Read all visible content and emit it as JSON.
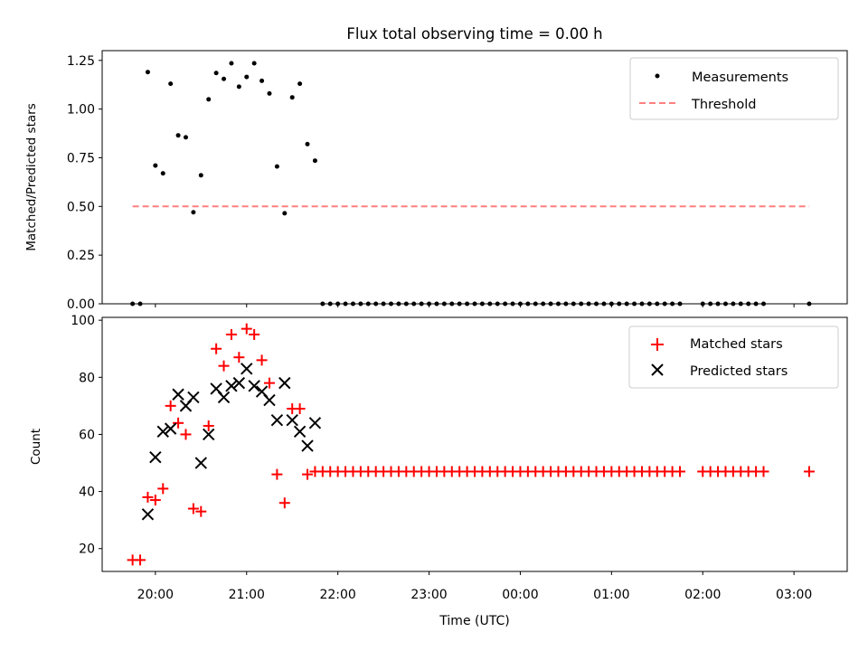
{
  "figure": {
    "title": "Flux total observing time = 0.00 h",
    "xlabel": "Time (UTC)"
  },
  "colors": {
    "measurements": "#000000",
    "threshold": "#ff7f7f",
    "matched": "#ff0000",
    "predicted": "#000000"
  },
  "chart_data": [
    {
      "type": "scatter",
      "panel": "top",
      "ylabel": "Matched/Predicted stars",
      "ylim": [
        0,
        1.3
      ],
      "yticks": [
        "0.00",
        "0.25",
        "0.50",
        "0.75",
        "1.00",
        "1.25"
      ],
      "xlim": [
        "19:25",
        "03:35"
      ],
      "legend": {
        "placement": "top-right",
        "entries": [
          "Measurements",
          "Threshold"
        ]
      },
      "series": [
        {
          "name": "Measurements",
          "marker": "dot",
          "points": [
            [
              "19:45",
              0.0
            ],
            [
              "19:50",
              0.0
            ],
            [
              "19:55",
              1.19
            ],
            [
              "20:00",
              0.71
            ],
            [
              "20:05",
              0.67
            ],
            [
              "20:10",
              1.13
            ],
            [
              "20:15",
              0.865
            ],
            [
              "20:20",
              0.855
            ],
            [
              "20:25",
              0.47
            ],
            [
              "20:30",
              0.66
            ],
            [
              "20:35",
              1.05
            ],
            [
              "20:40",
              1.185
            ],
            [
              "20:45",
              1.155
            ],
            [
              "20:50",
              1.235
            ],
            [
              "20:55",
              1.115
            ],
            [
              "21:00",
              1.165
            ],
            [
              "21:05",
              1.235
            ],
            [
              "21:10",
              1.145
            ],
            [
              "21:15",
              1.08
            ],
            [
              "21:20",
              0.705
            ],
            [
              "21:25",
              0.465
            ],
            [
              "21:30",
              1.06
            ],
            [
              "21:35",
              1.13
            ],
            [
              "21:40",
              0.82
            ],
            [
              "21:45",
              0.735
            ],
            [
              "21:50",
              0.0
            ],
            [
              "21:55",
              0.0
            ],
            [
              "22:00",
              0.0
            ],
            [
              "22:05",
              0.0
            ],
            [
              "22:10",
              0.0
            ],
            [
              "22:15",
              0.0
            ],
            [
              "22:20",
              0.0
            ],
            [
              "22:25",
              0.0
            ],
            [
              "22:30",
              0.0
            ],
            [
              "22:35",
              0.0
            ],
            [
              "22:40",
              0.0
            ],
            [
              "22:45",
              0.0
            ],
            [
              "22:50",
              0.0
            ],
            [
              "22:55",
              0.0
            ],
            [
              "23:00",
              0.0
            ],
            [
              "23:05",
              0.0
            ],
            [
              "23:10",
              0.0
            ],
            [
              "23:15",
              0.0
            ],
            [
              "23:20",
              0.0
            ],
            [
              "23:25",
              0.0
            ],
            [
              "23:30",
              0.0
            ],
            [
              "23:35",
              0.0
            ],
            [
              "23:40",
              0.0
            ],
            [
              "23:45",
              0.0
            ],
            [
              "23:50",
              0.0
            ],
            [
              "23:55",
              0.0
            ],
            [
              "00:00",
              0.0
            ],
            [
              "00:05",
              0.0
            ],
            [
              "00:10",
              0.0
            ],
            [
              "00:15",
              0.0
            ],
            [
              "00:20",
              0.0
            ],
            [
              "00:25",
              0.0
            ],
            [
              "00:30",
              0.0
            ],
            [
              "00:35",
              0.0
            ],
            [
              "00:40",
              0.0
            ],
            [
              "00:45",
              0.0
            ],
            [
              "00:50",
              0.0
            ],
            [
              "00:55",
              0.0
            ],
            [
              "01:00",
              0.0
            ],
            [
              "01:05",
              0.0
            ],
            [
              "01:10",
              0.0
            ],
            [
              "01:15",
              0.0
            ],
            [
              "01:20",
              0.0
            ],
            [
              "01:25",
              0.0
            ],
            [
              "01:30",
              0.0
            ],
            [
              "01:35",
              0.0
            ],
            [
              "01:40",
              0.0
            ],
            [
              "01:45",
              0.0
            ],
            [
              "02:00",
              0.0
            ],
            [
              "02:05",
              0.0
            ],
            [
              "02:10",
              0.0
            ],
            [
              "02:15",
              0.0
            ],
            [
              "02:20",
              0.0
            ],
            [
              "02:25",
              0.0
            ],
            [
              "02:30",
              0.0
            ],
            [
              "02:35",
              0.0
            ],
            [
              "02:40",
              0.0
            ],
            [
              "03:10",
              0.0
            ]
          ]
        },
        {
          "name": "Threshold",
          "marker": "dashed-line",
          "points": [
            [
              "19:45",
              0.5
            ],
            [
              "03:10",
              0.5
            ]
          ]
        }
      ]
    },
    {
      "type": "scatter",
      "panel": "bottom",
      "ylabel": "Count",
      "ylim": [
        12,
        101
      ],
      "yticks": [
        "20",
        "40",
        "60",
        "80",
        "100"
      ],
      "xlim": [
        "19:25",
        "03:35"
      ],
      "xticks": [
        "20:00",
        "21:00",
        "22:00",
        "23:00",
        "00:00",
        "01:00",
        "02:00",
        "03:00"
      ],
      "legend": {
        "placement": "top-right",
        "entries": [
          "Matched stars",
          "Predicted stars"
        ]
      },
      "series": [
        {
          "name": "Matched stars",
          "marker": "plus",
          "points": [
            [
              "19:45",
              16
            ],
            [
              "19:50",
              16
            ],
            [
              "19:55",
              38
            ],
            [
              "20:00",
              37
            ],
            [
              "20:05",
              41
            ],
            [
              "20:10",
              70
            ],
            [
              "20:15",
              64
            ],
            [
              "20:20",
              60
            ],
            [
              "20:25",
              34
            ],
            [
              "20:30",
              33
            ],
            [
              "20:35",
              63
            ],
            [
              "20:40",
              90
            ],
            [
              "20:45",
              84
            ],
            [
              "20:50",
              95
            ],
            [
              "20:55",
              87
            ],
            [
              "21:00",
              97
            ],
            [
              "21:05",
              95
            ],
            [
              "21:10",
              86
            ],
            [
              "21:15",
              78
            ],
            [
              "21:20",
              46
            ],
            [
              "21:25",
              36
            ],
            [
              "21:30",
              69
            ],
            [
              "21:35",
              69
            ],
            [
              "21:40",
              46
            ],
            [
              "21:45",
              47
            ],
            [
              "21:50",
              47
            ],
            [
              "21:55",
              47
            ],
            [
              "22:00",
              47
            ],
            [
              "22:05",
              47
            ],
            [
              "22:10",
              47
            ],
            [
              "22:15",
              47
            ],
            [
              "22:20",
              47
            ],
            [
              "22:25",
              47
            ],
            [
              "22:30",
              47
            ],
            [
              "22:35",
              47
            ],
            [
              "22:40",
              47
            ],
            [
              "22:45",
              47
            ],
            [
              "22:50",
              47
            ],
            [
              "22:55",
              47
            ],
            [
              "23:00",
              47
            ],
            [
              "23:05",
              47
            ],
            [
              "23:10",
              47
            ],
            [
              "23:15",
              47
            ],
            [
              "23:20",
              47
            ],
            [
              "23:25",
              47
            ],
            [
              "23:30",
              47
            ],
            [
              "23:35",
              47
            ],
            [
              "23:40",
              47
            ],
            [
              "23:45",
              47
            ],
            [
              "23:50",
              47
            ],
            [
              "23:55",
              47
            ],
            [
              "00:00",
              47
            ],
            [
              "00:05",
              47
            ],
            [
              "00:10",
              47
            ],
            [
              "00:15",
              47
            ],
            [
              "00:20",
              47
            ],
            [
              "00:25",
              47
            ],
            [
              "00:30",
              47
            ],
            [
              "00:35",
              47
            ],
            [
              "00:40",
              47
            ],
            [
              "00:45",
              47
            ],
            [
              "00:50",
              47
            ],
            [
              "00:55",
              47
            ],
            [
              "01:00",
              47
            ],
            [
              "01:05",
              47
            ],
            [
              "01:10",
              47
            ],
            [
              "01:15",
              47
            ],
            [
              "01:20",
              47
            ],
            [
              "01:25",
              47
            ],
            [
              "01:30",
              47
            ],
            [
              "01:35",
              47
            ],
            [
              "01:40",
              47
            ],
            [
              "01:45",
              47
            ],
            [
              "02:00",
              47
            ],
            [
              "02:05",
              47
            ],
            [
              "02:10",
              47
            ],
            [
              "02:15",
              47
            ],
            [
              "02:20",
              47
            ],
            [
              "02:25",
              47
            ],
            [
              "02:30",
              47
            ],
            [
              "02:35",
              47
            ],
            [
              "02:40",
              47
            ],
            [
              "03:10",
              47
            ]
          ]
        },
        {
          "name": "Predicted stars",
          "marker": "x",
          "points": [
            [
              "19:55",
              32
            ],
            [
              "20:00",
              52
            ],
            [
              "20:05",
              61
            ],
            [
              "20:10",
              62
            ],
            [
              "20:15",
              74
            ],
            [
              "20:20",
              70
            ],
            [
              "20:25",
              73
            ],
            [
              "20:30",
              50
            ],
            [
              "20:35",
              60
            ],
            [
              "20:40",
              76
            ],
            [
              "20:45",
              73
            ],
            [
              "20:50",
              77
            ],
            [
              "20:55",
              78
            ],
            [
              "21:00",
              83
            ],
            [
              "21:05",
              77
            ],
            [
              "21:10",
              75
            ],
            [
              "21:15",
              72
            ],
            [
              "21:20",
              65
            ],
            [
              "21:25",
              78
            ],
            [
              "21:30",
              65
            ],
            [
              "21:35",
              61
            ],
            [
              "21:40",
              56
            ],
            [
              "21:45",
              64
            ]
          ]
        }
      ]
    }
  ]
}
